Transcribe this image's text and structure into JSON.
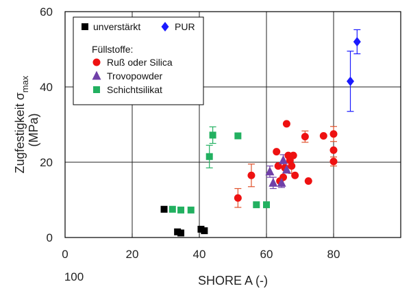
{
  "chart_data": {
    "type": "scatter",
    "xlabel": "SHORE A (-)",
    "ylabel_main": "Zugfestigkeit σ",
    "ylabel_sub": "max",
    "ylabel_unit": "(MPa)",
    "xlim": [
      0,
      100
    ],
    "ylim": [
      0,
      60
    ],
    "x_ticks": [
      "0",
      "20",
      "40",
      "60",
      "80"
    ],
    "x_tick_values": [
      0,
      20,
      40,
      60,
      80
    ],
    "x_last_tick_label": "100",
    "y_ticks": [
      "0",
      "20",
      "40",
      "60"
    ],
    "y_tick_values": [
      0,
      20,
      40,
      60
    ],
    "grid": true,
    "legend_position": "top-left",
    "legend_group_title": "Füllstoffe:",
    "colors": {
      "unverstaerkt": "#000000",
      "pur": "#1a1aff",
      "russ": "#ee1111",
      "russ_err": "#e0502a",
      "trovo": "#7040a8",
      "schicht": "#22b060"
    },
    "series": [
      {
        "key": "unverstaerkt",
        "name": "unverstärkt",
        "marker": "square",
        "points": [
          {
            "x": 29.5,
            "y": 7.5
          },
          {
            "x": 33.5,
            "y": 1.5
          },
          {
            "x": 34.5,
            "y": 1.2
          },
          {
            "x": 40.5,
            "y": 2.2
          },
          {
            "x": 41.5,
            "y": 1.8
          }
        ]
      },
      {
        "key": "pur",
        "name": "PUR",
        "marker": "diamond",
        "points": [
          {
            "x": 85,
            "y": 41.5,
            "err": 8
          },
          {
            "x": 87,
            "y": 52,
            "err": 3.2
          }
        ]
      },
      {
        "key": "russ",
        "name": "Ruß oder Silica",
        "marker": "circle",
        "points": [
          {
            "x": 51.5,
            "y": 10.5,
            "err": 2.5
          },
          {
            "x": 55.5,
            "y": 16.5,
            "err": 3
          },
          {
            "x": 63,
            "y": 22.8
          },
          {
            "x": 63.5,
            "y": 19
          },
          {
            "x": 64,
            "y": 15
          },
          {
            "x": 65,
            "y": 16
          },
          {
            "x": 65.5,
            "y": 18.5
          },
          {
            "x": 66,
            "y": 30.2
          },
          {
            "x": 66.5,
            "y": 21.8
          },
          {
            "x": 67,
            "y": 20.5
          },
          {
            "x": 67.5,
            "y": 19,
            "err": 2
          },
          {
            "x": 68,
            "y": 21.8
          },
          {
            "x": 68.5,
            "y": 16.5
          },
          {
            "x": 71.5,
            "y": 26.8,
            "err": 1.5
          },
          {
            "x": 72.5,
            "y": 15
          },
          {
            "x": 77,
            "y": 27
          },
          {
            "x": 80,
            "y": 27.5,
            "err": 2
          },
          {
            "x": 80,
            "y": 23.2
          },
          {
            "x": 80,
            "y": 20.2,
            "err": 1.2
          }
        ]
      },
      {
        "key": "trovo",
        "name": "Trovopowder",
        "marker": "triangle",
        "points": [
          {
            "x": 61,
            "y": 17.5,
            "err": 1.5
          },
          {
            "x": 62,
            "y": 14.5,
            "err": 1.5
          },
          {
            "x": 64.5,
            "y": 14.5,
            "err": 1.2
          },
          {
            "x": 65,
            "y": 20.5,
            "err": 1.5
          },
          {
            "x": 66,
            "y": 18
          }
        ]
      },
      {
        "key": "schicht",
        "name": "Schichtsilikat",
        "marker": "square",
        "points": [
          {
            "x": 32,
            "y": 7.5
          },
          {
            "x": 34.5,
            "y": 7.3
          },
          {
            "x": 37.5,
            "y": 7.3
          },
          {
            "x": 43,
            "y": 21.5,
            "err": 3
          },
          {
            "x": 44,
            "y": 27.2,
            "err": 2.2
          },
          {
            "x": 51.5,
            "y": 27
          },
          {
            "x": 57,
            "y": 8.7
          },
          {
            "x": 60,
            "y": 8.7
          }
        ]
      }
    ]
  }
}
